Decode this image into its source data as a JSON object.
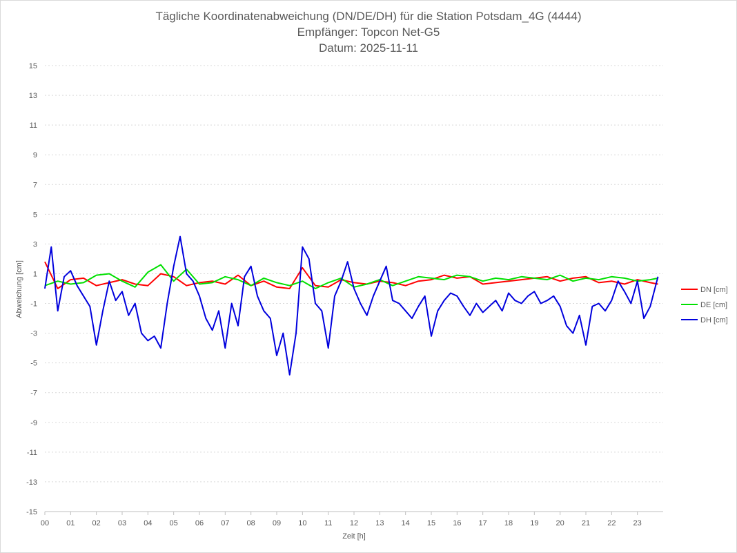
{
  "chart_data": {
    "type": "line",
    "title": [
      "Tägliche Koordinatenabweichung (DN/DE/DH) für die Station Potsdam_4G (4444)",
      "Empfänger: Topcon Net-G5",
      "Datum: 2025-11-11"
    ],
    "xlabel": "Zeit [h]",
    "ylabel": "Abweichung [cm]",
    "xlim": [
      0,
      24
    ],
    "ylim": [
      -15,
      15
    ],
    "x_ticks": [
      0,
      1,
      2,
      3,
      4,
      5,
      6,
      7,
      8,
      9,
      10,
      11,
      12,
      13,
      14,
      15,
      16,
      17,
      18,
      19,
      20,
      21,
      22,
      23
    ],
    "x_tick_labels": [
      "00",
      "01",
      "02",
      "03",
      "04",
      "05",
      "06",
      "07",
      "08",
      "09",
      "10",
      "11",
      "12",
      "13",
      "14",
      "15",
      "16",
      "17",
      "18",
      "19",
      "20",
      "21",
      "22",
      "23"
    ],
    "y_ticks": [
      15,
      13,
      11,
      9,
      7,
      5,
      3,
      1,
      -1,
      -3,
      -5,
      -7,
      -9,
      -11,
      -13,
      -15
    ],
    "legend_position": "right",
    "grid": true,
    "series": [
      {
        "name": "DN [cm]",
        "color": "#ff0000",
        "x": [
          0,
          0.5,
          1,
          1.5,
          2,
          2.5,
          3,
          3.5,
          4,
          4.5,
          5,
          5.5,
          6,
          6.5,
          7,
          7.5,
          8,
          8.5,
          9,
          9.5,
          10,
          10.5,
          11,
          11.5,
          12,
          12.5,
          13,
          13.5,
          14,
          14.5,
          15,
          15.5,
          16,
          16.5,
          17,
          17.5,
          18,
          18.5,
          19,
          19.5,
          20,
          20.5,
          21,
          21.5,
          22,
          22.5,
          23,
          23.5,
          23.8
        ],
        "y": [
          1.8,
          0.0,
          0.6,
          0.7,
          0.2,
          0.4,
          0.6,
          0.3,
          0.2,
          1.0,
          0.8,
          0.2,
          0.4,
          0.5,
          0.3,
          0.9,
          0.2,
          0.5,
          0.1,
          0.0,
          1.4,
          0.2,
          0.1,
          0.6,
          0.4,
          0.3,
          0.5,
          0.4,
          0.2,
          0.5,
          0.6,
          0.9,
          0.7,
          0.8,
          0.3,
          0.4,
          0.5,
          0.6,
          0.7,
          0.8,
          0.5,
          0.7,
          0.8,
          0.4,
          0.5,
          0.3,
          0.6,
          0.4,
          0.3
        ]
      },
      {
        "name": "DE [cm]",
        "color": "#00e000",
        "x": [
          0,
          0.5,
          1,
          1.5,
          2,
          2.5,
          3,
          3.5,
          4,
          4.5,
          5,
          5.5,
          6,
          6.5,
          7,
          7.5,
          8,
          8.5,
          9,
          9.5,
          10,
          10.5,
          11,
          11.5,
          12,
          12.5,
          13,
          13.5,
          14,
          14.5,
          15,
          15.5,
          16,
          16.5,
          17,
          17.5,
          18,
          18.5,
          19,
          19.5,
          20,
          20.5,
          21,
          21.5,
          22,
          22.5,
          23,
          23.5,
          23.8
        ],
        "y": [
          0.2,
          0.5,
          0.3,
          0.4,
          0.9,
          1.0,
          0.5,
          0.1,
          1.1,
          1.6,
          0.5,
          1.3,
          0.3,
          0.4,
          0.8,
          0.6,
          0.2,
          0.7,
          0.4,
          0.2,
          0.5,
          0.0,
          0.4,
          0.7,
          0.1,
          0.3,
          0.6,
          0.2,
          0.5,
          0.8,
          0.7,
          0.6,
          0.9,
          0.8,
          0.5,
          0.7,
          0.6,
          0.8,
          0.7,
          0.6,
          0.9,
          0.5,
          0.7,
          0.6,
          0.8,
          0.7,
          0.5,
          0.6,
          0.7
        ]
      },
      {
        "name": "DH [cm]",
        "color": "#0000dd",
        "x": [
          0,
          0.25,
          0.5,
          0.75,
          1,
          1.25,
          1.5,
          1.75,
          2,
          2.25,
          2.5,
          2.75,
          3,
          3.25,
          3.5,
          3.75,
          4,
          4.25,
          4.5,
          4.75,
          5,
          5.25,
          5.5,
          5.75,
          6,
          6.25,
          6.5,
          6.75,
          7,
          7.25,
          7.5,
          7.75,
          8,
          8.25,
          8.5,
          8.75,
          9,
          9.25,
          9.5,
          9.75,
          10,
          10.25,
          10.5,
          10.75,
          11,
          11.25,
          11.5,
          11.75,
          12,
          12.25,
          12.5,
          12.75,
          13,
          13.25,
          13.5,
          13.75,
          14,
          14.25,
          14.5,
          14.75,
          15,
          15.25,
          15.5,
          15.75,
          16,
          16.25,
          16.5,
          16.75,
          17,
          17.25,
          17.5,
          17.75,
          18,
          18.25,
          18.5,
          18.75,
          19,
          19.25,
          19.5,
          19.75,
          20,
          20.25,
          20.5,
          20.75,
          21,
          21.25,
          21.5,
          21.75,
          22,
          22.25,
          22.5,
          22.75,
          23,
          23.25,
          23.5,
          23.8
        ],
        "y": [
          0.0,
          2.8,
          -1.5,
          0.8,
          1.2,
          0.2,
          -0.5,
          -1.2,
          -3.8,
          -1.5,
          0.5,
          -0.8,
          -0.2,
          -1.8,
          -1.0,
          -3.0,
          -3.5,
          -3.2,
          -4.0,
          -1.0,
          1.5,
          3.5,
          1.0,
          0.5,
          -0.5,
          -2.0,
          -2.8,
          -1.5,
          -4.0,
          -1.0,
          -2.5,
          0.8,
          1.5,
          -0.5,
          -1.5,
          -2.0,
          -4.5,
          -3.0,
          -5.8,
          -3.0,
          2.8,
          2.0,
          -1.0,
          -1.5,
          -4.0,
          -0.5,
          0.5,
          1.8,
          0.0,
          -1.0,
          -1.8,
          -0.5,
          0.5,
          1.5,
          -0.8,
          -1.0,
          -1.5,
          -2.0,
          -1.2,
          -0.5,
          -3.2,
          -1.5,
          -0.8,
          -0.3,
          -0.5,
          -1.2,
          -1.8,
          -1.0,
          -1.6,
          -1.2,
          -0.8,
          -1.5,
          -0.3,
          -0.8,
          -1.0,
          -0.5,
          -0.2,
          -1.0,
          -0.8,
          -0.5,
          -1.2,
          -2.5,
          -3.0,
          -1.8,
          -3.8,
          -1.2,
          -1.0,
          -1.5,
          -0.8,
          0.5,
          -0.2,
          -1.0,
          0.5,
          -2.0,
          -1.2,
          0.8
        ]
      }
    ]
  }
}
